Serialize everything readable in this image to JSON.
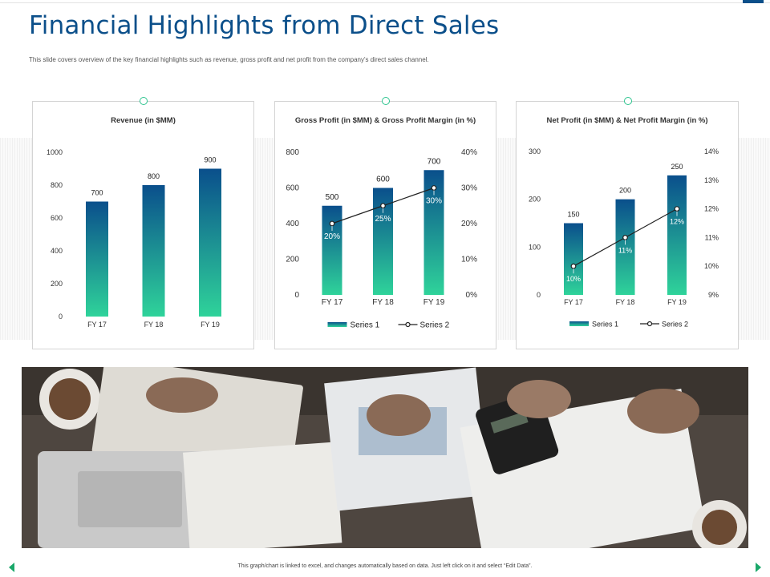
{
  "header": {
    "title": "Financial Highlights from Direct Sales",
    "subtitle": "This slide covers overview of the key financial highlights such as revenue, gross profit and net profit from the company's direct sales channel."
  },
  "footer": {
    "note": "This graph/chart is linked to excel, and changes automatically based on data. Just left click on it and select “Edit Data”."
  },
  "colors": {
    "title": "#0b4f8a",
    "bar_top": "#0a4f8c",
    "bar_bottom": "#2fd39a",
    "accent_green": "#2ec48f",
    "line": "#222222"
  },
  "icons": {
    "prev": "triangle-left-icon",
    "next": "triangle-right-icon",
    "card_marker": "circle-icon"
  },
  "photo": {
    "description": "photo-of-people-reviewing-financial-charts"
  },
  "chart_data": [
    {
      "type": "bar",
      "title": "Revenue (in $MM)",
      "categories": [
        "FY 17",
        "FY 18",
        "FY 19"
      ],
      "series": [
        {
          "values": [
            700,
            800,
            900
          ]
        }
      ],
      "yticks": [
        "0",
        "200",
        "400",
        "600",
        "800",
        "1000"
      ],
      "ylim": [
        0,
        1000
      ],
      "data_labels": [
        "700",
        "800",
        "900"
      ],
      "grid": false,
      "legend": null
    },
    {
      "type": "bar",
      "title": "Gross Profit (in $MM) & Gross Profit Margin (in %)",
      "categories": [
        "FY 17",
        "FY 18",
        "FY 19"
      ],
      "series": [
        {
          "name": "Series 1",
          "type": "bar",
          "axis": "left",
          "values": [
            500,
            600,
            700
          ]
        },
        {
          "name": "Series 2",
          "type": "line",
          "axis": "right",
          "values": [
            20,
            25,
            30
          ]
        }
      ],
      "yticks": [
        "0",
        "200",
        "400",
        "600",
        "800"
      ],
      "ylim": [
        0,
        800
      ],
      "y2ticks": [
        "0%",
        "10%",
        "20%",
        "30%",
        "40%"
      ],
      "y2lim": [
        0,
        40
      ],
      "bar_labels": [
        "500",
        "600",
        "700"
      ],
      "line_labels": [
        "20%",
        "25%",
        "30%"
      ],
      "grid": false,
      "legend": "bottom"
    },
    {
      "type": "bar",
      "title": "Net Profit (in $MM) & Net Profit Margin (in %)",
      "categories": [
        "FY 17",
        "FY 18",
        "FY 19"
      ],
      "series": [
        {
          "name": "Series 1",
          "type": "bar",
          "axis": "left",
          "values": [
            150,
            200,
            250
          ]
        },
        {
          "name": "Series 2",
          "type": "line",
          "axis": "right",
          "values": [
            10,
            11,
            12
          ]
        }
      ],
      "yticks": [
        "0",
        "100",
        "200",
        "300"
      ],
      "ylim": [
        0,
        300
      ],
      "y2ticks": [
        "9%",
        "10%",
        "11%",
        "12%",
        "13%",
        "14%"
      ],
      "y2lim": [
        9,
        14
      ],
      "bar_labels": [
        "150",
        "200",
        "250"
      ],
      "line_labels": [
        "10%",
        "11%",
        "12%"
      ],
      "grid": false,
      "legend": "bottom"
    }
  ]
}
